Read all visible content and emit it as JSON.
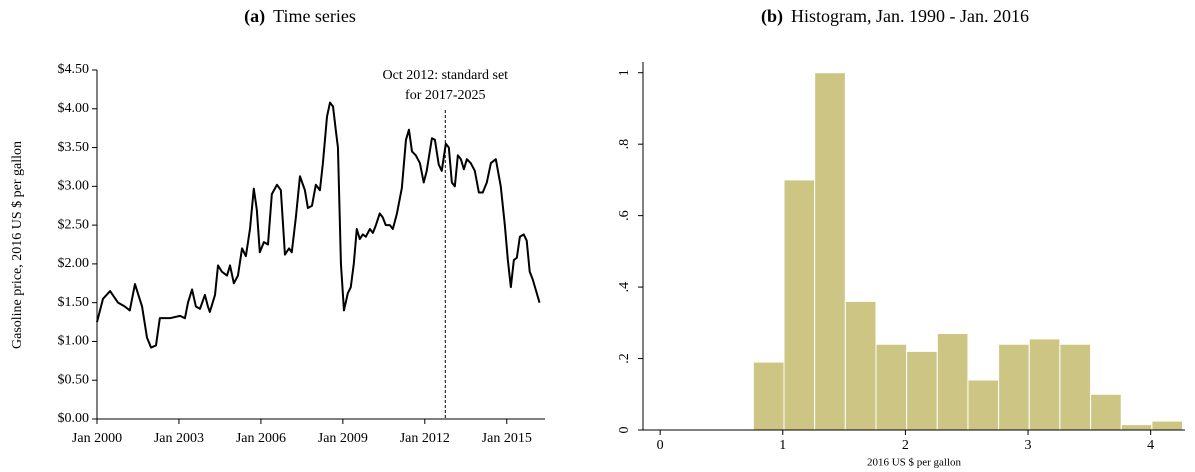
{
  "chart_data": [
    {
      "type": "line",
      "panel": "(a)",
      "title": "Time series",
      "ylabel": "Gasoline price, 2016 US $ per gallon",
      "color": "#000000",
      "x": [
        2000.0,
        2000.22,
        2000.48,
        2000.77,
        2001.02,
        2001.2,
        2001.39,
        2001.65,
        2001.83,
        2001.98,
        2002.16,
        2002.3,
        2002.67,
        2003.04,
        2003.22,
        2003.33,
        2003.48,
        2003.62,
        2003.77,
        2003.95,
        2004.06,
        2004.13,
        2004.32,
        2004.43,
        2004.57,
        2004.76,
        2004.87,
        2005.01,
        2005.16,
        2005.31,
        2005.45,
        2005.6,
        2005.74,
        2005.85,
        2005.96,
        2006.11,
        2006.26,
        2006.4,
        2006.59,
        2006.73,
        2006.88,
        2007.03,
        2007.13,
        2007.28,
        2007.43,
        2007.61,
        2007.72,
        2007.87,
        2008.01,
        2008.16,
        2008.27,
        2008.42,
        2008.53,
        2008.64,
        2008.75,
        2008.82,
        2008.93,
        2009.04,
        2009.18,
        2009.29,
        2009.4,
        2009.51,
        2009.62,
        2009.73,
        2009.84,
        2009.99,
        2010.1,
        2010.21,
        2010.35,
        2010.46,
        2010.57,
        2010.72,
        2010.83,
        2010.98,
        2011.16,
        2011.31,
        2011.42,
        2011.53,
        2011.67,
        2011.82,
        2011.96,
        2012.07,
        2012.26,
        2012.37,
        2012.51,
        2012.62,
        2012.77,
        2012.88,
        2012.99,
        2013.1,
        2013.21,
        2013.32,
        2013.43,
        2013.54,
        2013.68,
        2013.83,
        2013.98,
        2014.12,
        2014.27,
        2014.42,
        2014.6,
        2014.78,
        2014.93,
        2015.04,
        2015.15,
        2015.26,
        2015.37,
        2015.48,
        2015.62,
        2015.73,
        2015.84,
        2015.95,
        2016.2
      ],
      "values": [
        1.25,
        1.55,
        1.65,
        1.5,
        1.45,
        1.4,
        1.74,
        1.45,
        1.05,
        0.92,
        0.95,
        1.3,
        1.3,
        1.33,
        1.3,
        1.5,
        1.67,
        1.45,
        1.42,
        1.6,
        1.45,
        1.38,
        1.6,
        1.98,
        1.9,
        1.85,
        1.98,
        1.75,
        1.85,
        2.2,
        2.1,
        2.45,
        2.97,
        2.7,
        2.15,
        2.28,
        2.25,
        2.9,
        3.02,
        2.95,
        2.12,
        2.2,
        2.15,
        2.6,
        3.13,
        2.95,
        2.72,
        2.75,
        3.02,
        2.95,
        3.3,
        3.9,
        4.08,
        4.03,
        3.7,
        3.5,
        2.0,
        1.4,
        1.62,
        1.7,
        2.0,
        2.45,
        2.32,
        2.38,
        2.35,
        2.45,
        2.4,
        2.5,
        2.65,
        2.6,
        2.5,
        2.5,
        2.45,
        2.65,
        2.98,
        3.6,
        3.73,
        3.45,
        3.4,
        3.3,
        3.05,
        3.2,
        3.62,
        3.6,
        3.28,
        3.2,
        3.55,
        3.5,
        3.05,
        3.0,
        3.4,
        3.35,
        3.22,
        3.35,
        3.3,
        3.2,
        2.92,
        2.92,
        3.05,
        3.3,
        3.35,
        3.0,
        2.5,
        2.05,
        1.7,
        2.05,
        2.08,
        2.35,
        2.38,
        2.3,
        1.9,
        1.8,
        1.5
      ],
      "xlim": [
        2000,
        2016.4
      ],
      "xticks": [
        {
          "value": 2000,
          "label": "Jan 2000"
        },
        {
          "value": 2003,
          "label": "Jan 2003"
        },
        {
          "value": 2006,
          "label": "Jan 2006"
        },
        {
          "value": 2009,
          "label": "Jan 2009"
        },
        {
          "value": 2012,
          "label": "Jan 2012"
        },
        {
          "value": 2015,
          "label": "Jan 2015"
        }
      ],
      "ylim": [
        0,
        4.5
      ],
      "yticks": [
        {
          "value": 0,
          "label": "$0.00"
        },
        {
          "value": 0.5,
          "label": "$0.50"
        },
        {
          "value": 1,
          "label": "$1.00"
        },
        {
          "value": 1.5,
          "label": "$1.50"
        },
        {
          "value": 2,
          "label": "$2.00"
        },
        {
          "value": 2.5,
          "label": "$2.50"
        },
        {
          "value": 3,
          "label": "$3.00"
        },
        {
          "value": 3.5,
          "label": "$3.50"
        },
        {
          "value": 4,
          "label": "$4.00"
        },
        {
          "value": 4.5,
          "label": "$4.50"
        }
      ],
      "annotation": {
        "x": 2012.75,
        "text": [
          "Oct 2012: standard set",
          "for 2017-2025"
        ]
      }
    },
    {
      "type": "histogram",
      "panel": "(b)",
      "title": "Histogram, Jan. 1990 - Jan. 2016",
      "xlabel": "2016 US $ per gallon",
      "color": "#cdc584",
      "bins": [
        0.76,
        1.01,
        1.26,
        1.51,
        1.76,
        2.01,
        2.26,
        2.51,
        2.76,
        3.01,
        3.26,
        3.51,
        3.76,
        4.01,
        4.26
      ],
      "values": [
        0.19,
        0.7,
        1.0,
        0.36,
        0.24,
        0.22,
        0.27,
        0.14,
        0.24,
        0.255,
        0.24,
        0.1,
        0.015,
        0.025
      ],
      "xlim": [
        -0.14,
        4.28
      ],
      "xticks": [
        0,
        1,
        2,
        3,
        4
      ],
      "ylim": [
        0,
        1.03
      ],
      "yticks": [
        0,
        {
          "value": 0.2,
          "label": ".2"
        },
        {
          "value": 0.4,
          "label": ".4"
        },
        {
          "value": 0.6,
          "label": ".6"
        },
        {
          "value": 0.8,
          "label": ".8"
        },
        1
      ]
    }
  ]
}
